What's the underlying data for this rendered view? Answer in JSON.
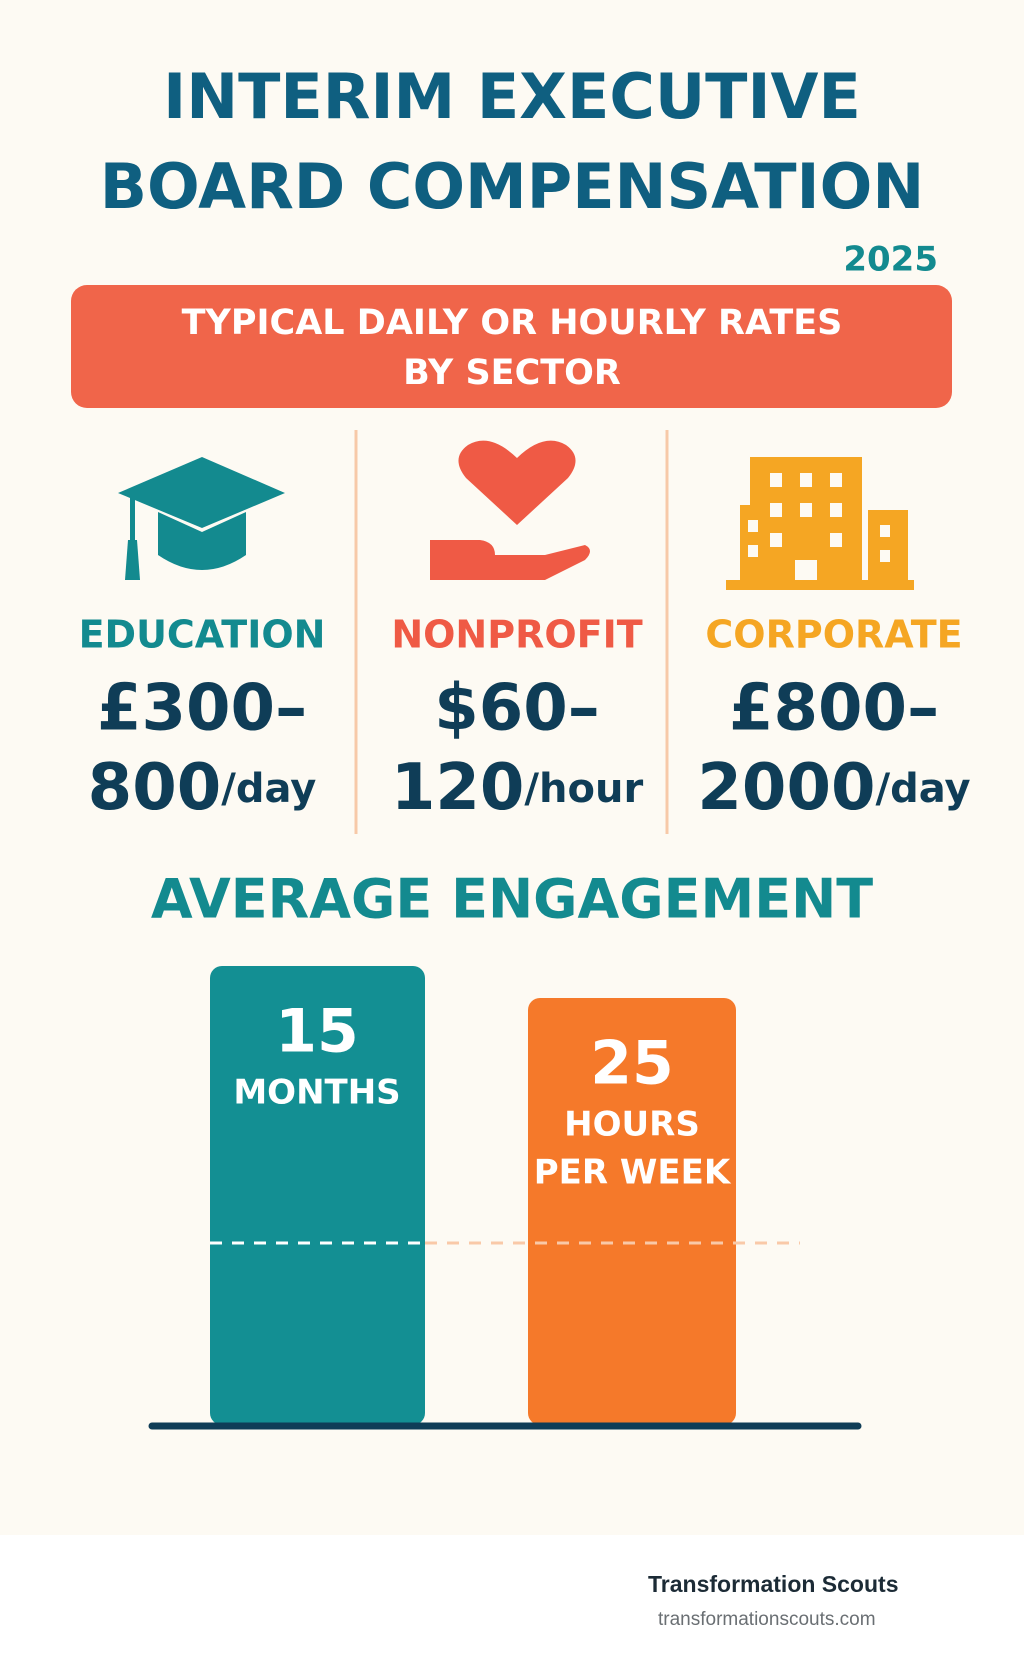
{
  "header": {
    "title_lines": [
      "INTERIM EXECUTIVE",
      "BOARD COMPENSATION"
    ],
    "year": "2025"
  },
  "banner": {
    "lines": [
      "TYPICAL DAILY OR HOURLY RATES",
      "BY SECTOR"
    ]
  },
  "sectors": [
    {
      "label": "EDUCATION",
      "rate_lines": [
        "£300–",
        "800"
      ],
      "unit": "/day"
    },
    {
      "label": "NONPROFIT",
      "rate_lines": [
        "$60–",
        "120"
      ],
      "unit": "/hour"
    },
    {
      "label": "CORPORATE",
      "rate_lines": [
        "£800–",
        "2000"
      ],
      "unit": "/day"
    }
  ],
  "engagement": {
    "title": "AVERAGE ENGAGEMENT",
    "bars": [
      {
        "number": "15",
        "lines": [
          "MONTHS"
        ]
      },
      {
        "number": "25",
        "lines": [
          "HOURS",
          "PER WEEK"
        ]
      }
    ]
  },
  "footer": {
    "brand": "Transformation Scouts",
    "url": "transformationscouts.com"
  }
}
